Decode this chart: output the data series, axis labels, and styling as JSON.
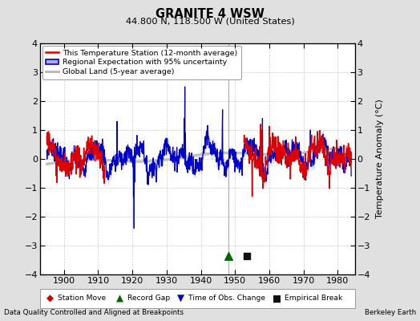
{
  "title": "GRANITE 4 WSW",
  "subtitle": "44.800 N, 118.500 W (United States)",
  "ylabel": "Temperature Anomaly (°C)",
  "footer_left": "Data Quality Controlled and Aligned at Breakpoints",
  "footer_right": "Berkeley Earth",
  "xlim": [
    1893,
    1985
  ],
  "ylim": [
    -4,
    4
  ],
  "yticks": [
    -4,
    -3,
    -2,
    -1,
    0,
    1,
    2,
    3,
    4
  ],
  "xticks": [
    1900,
    1910,
    1920,
    1930,
    1940,
    1950,
    1960,
    1970,
    1980
  ],
  "bg_color": "#e0e0e0",
  "plot_bg_color": "#ffffff",
  "grid_color": "#cccccc",
  "red_color": "#dd0000",
  "blue_color": "#0000cc",
  "blue_fill_color": "#aaaaee",
  "gray_color": "#bbbbbb",
  "marker_green": "#006600",
  "marker_red": "#cc0000",
  "marker_blue": "#0000cc",
  "marker_black": "#111111",
  "vline_x": 1948,
  "vline_color": "#888888",
  "record_gap_x": 1948,
  "record_gap_y": -3.35,
  "empirical_break_x": 1953.5,
  "empirical_break_y": -3.35,
  "red_start": 1952,
  "red_early_end": 1912,
  "legend_labels": [
    "This Temperature Station (12-month average)",
    "Regional Expectation with 95% uncertainty",
    "Global Land (5-year average)"
  ],
  "bottom_legend": [
    {
      "marker": "D",
      "color": "#cc0000",
      "label": "Station Move"
    },
    {
      "marker": "^",
      "color": "#006600",
      "label": "Record Gap"
    },
    {
      "marker": "v",
      "color": "#0000cc",
      "label": "Time of Obs. Change"
    },
    {
      "marker": "s",
      "color": "#111111",
      "label": "Empirical Break"
    }
  ]
}
